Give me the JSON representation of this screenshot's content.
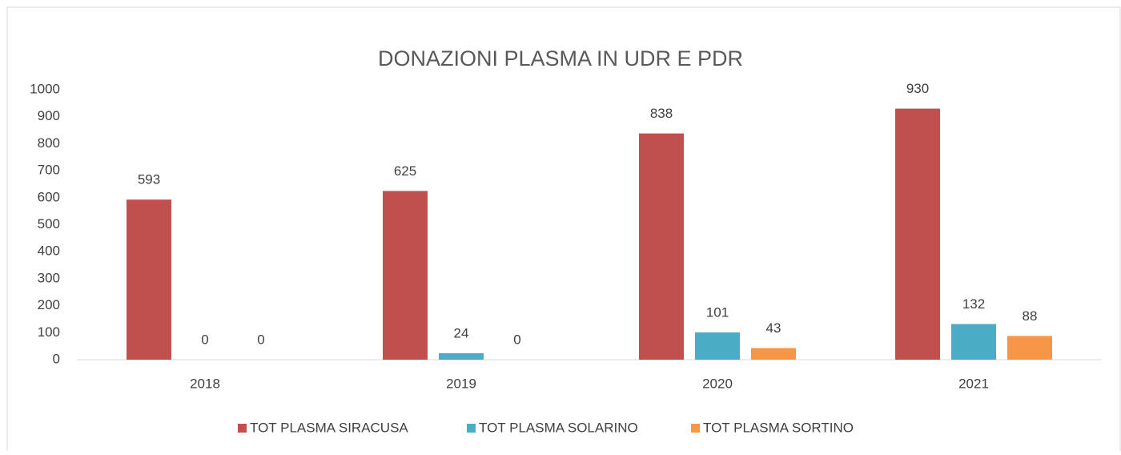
{
  "chart_data": {
    "type": "bar",
    "title": "DONAZIONI PLASMA IN UDR E PDR",
    "categories": [
      "2018",
      "2019",
      "2020",
      "2021"
    ],
    "series": [
      {
        "name": "TOT PLASMA SIRACUSA",
        "color": "#c0504d",
        "values": [
          593,
          625,
          838,
          930
        ]
      },
      {
        "name": "TOT PLASMA SOLARINO",
        "color": "#4bacc6",
        "values": [
          0,
          24,
          101,
          132
        ]
      },
      {
        "name": "TOT PLASMA SORTINO",
        "color": "#f79646",
        "values": [
          0,
          0,
          43,
          88
        ]
      }
    ],
    "ylim": [
      0,
      1000
    ],
    "yticks": [
      0,
      100,
      200,
      300,
      400,
      500,
      600,
      700,
      800,
      900,
      1000
    ],
    "grid": false,
    "legend": "bottom"
  }
}
